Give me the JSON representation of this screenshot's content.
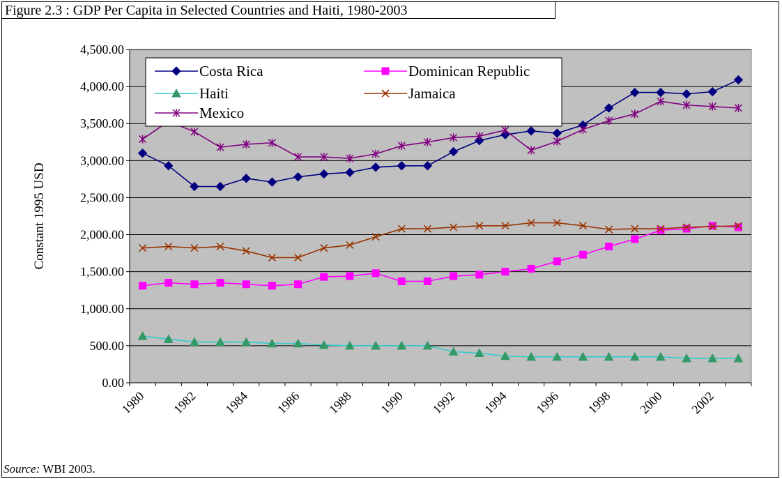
{
  "figure": {
    "title": "Figure 2.3 : GDP Per Capita in Selected Countries and Haiti, 1980-2003",
    "source_label": "Source:",
    "source_text": " WBI 2003."
  },
  "chart_data": {
    "type": "line",
    "title": "",
    "xlabel": "",
    "ylabel": "Constant 1995 USD",
    "ylim": [
      0,
      4500
    ],
    "y_ticks": [
      "0.00",
      "500.00",
      "1,000.00",
      "1,500.00",
      "2,000.00",
      "2,500.00",
      "3,000.00",
      "3,500.00",
      "4,000.00",
      "4,500.00"
    ],
    "x": [
      1980,
      1981,
      1982,
      1983,
      1984,
      1985,
      1986,
      1987,
      1988,
      1989,
      1990,
      1991,
      1992,
      1993,
      1994,
      1995,
      1996,
      1997,
      1998,
      1999,
      2000,
      2001,
      2002,
      2003
    ],
    "x_tick_labels": [
      "1980",
      "1982",
      "1984",
      "1986",
      "1988",
      "1990",
      "1992",
      "1994",
      "1996",
      "1998",
      "2000",
      "2002"
    ],
    "grid": "horizontal",
    "plot_background": "#C0C0C0",
    "legend_position": "top-left",
    "series": [
      {
        "name": "Costa Rica",
        "color": "#000080",
        "marker": "diamond",
        "values": [
          3100,
          2930,
          2650,
          2650,
          2760,
          2710,
          2780,
          2820,
          2840,
          2910,
          2930,
          2930,
          3120,
          3270,
          3350,
          3400,
          3370,
          3480,
          3710,
          3920,
          3920,
          3900,
          3930,
          4090
        ]
      },
      {
        "name": "Dominican Republic",
        "color": "#FF00FF",
        "marker": "square",
        "values": [
          1310,
          1350,
          1330,
          1350,
          1330,
          1310,
          1330,
          1430,
          1440,
          1480,
          1370,
          1370,
          1440,
          1460,
          1500,
          1540,
          1640,
          1730,
          1840,
          1940,
          2060,
          2080,
          2120,
          2100
        ]
      },
      {
        "name": "Haiti",
        "color": "#33CCCC",
        "marker": "triangle",
        "values": [
          630,
          590,
          550,
          550,
          550,
          530,
          530,
          510,
          500,
          500,
          500,
          500,
          420,
          400,
          360,
          350,
          350,
          350,
          350,
          350,
          350,
          330,
          330,
          330
        ]
      },
      {
        "name": "Jamaica",
        "color": "#993300",
        "marker": "x",
        "values": [
          1820,
          1840,
          1820,
          1840,
          1780,
          1690,
          1690,
          1820,
          1860,
          1970,
          2080,
          2080,
          2100,
          2120,
          2120,
          2160,
          2160,
          2120,
          2070,
          2080,
          2080,
          2100,
          2110,
          2120
        ]
      },
      {
        "name": "Mexico",
        "color": "#800080",
        "marker": "star",
        "values": [
          3290,
          3530,
          3390,
          3180,
          3220,
          3240,
          3050,
          3050,
          3030,
          3090,
          3200,
          3250,
          3310,
          3330,
          3410,
          3140,
          3260,
          3420,
          3540,
          3630,
          3800,
          3750,
          3730,
          3710
        ]
      }
    ]
  }
}
